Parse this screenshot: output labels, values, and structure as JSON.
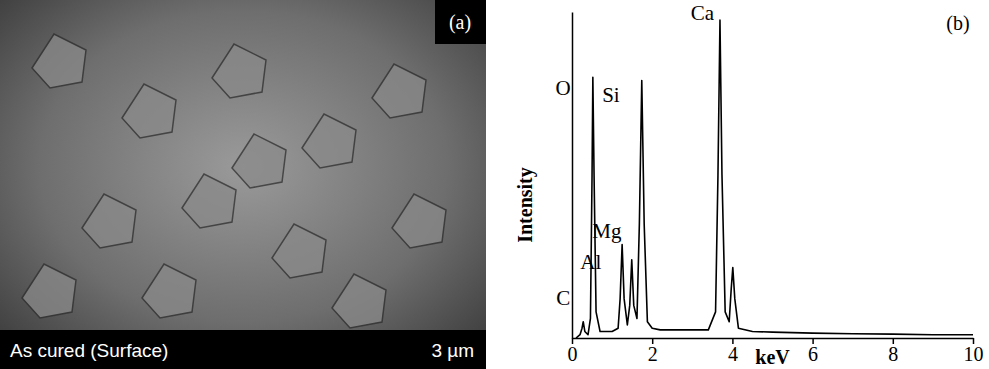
{
  "image_panel": {
    "label": "(a)",
    "caption": "As cured (Surface)",
    "scale_bar": "3 µm"
  },
  "chart_data": {
    "type": "line",
    "title": "(b)",
    "x_label": "keV",
    "y_label": "Intensity",
    "x": [
      0.1,
      0.2,
      0.25,
      0.28,
      0.32,
      0.4,
      0.46,
      0.5,
      0.52,
      0.55,
      0.6,
      0.7,
      0.8,
      1.0,
      1.15,
      1.2,
      1.25,
      1.3,
      1.38,
      1.44,
      1.49,
      1.54,
      1.62,
      1.68,
      1.74,
      1.8,
      1.88,
      2.0,
      2.2,
      2.5,
      3.0,
      3.4,
      3.58,
      3.64,
      3.69,
      3.74,
      3.82,
      3.92,
      3.97,
      4.01,
      4.06,
      4.15,
      4.5,
      5.0,
      6.0,
      7.0,
      8.0,
      9.0,
      10.0
    ],
    "values": [
      0,
      1,
      3,
      5,
      2,
      1,
      6,
      50,
      80,
      50,
      8,
      2,
      2,
      2,
      3,
      12,
      28.7,
      12,
      4,
      10,
      24,
      10,
      6,
      35,
      79,
      35,
      5,
      3,
      2.5,
      2.5,
      2.5,
      2.5,
      8,
      50,
      97.5,
      50,
      8,
      5,
      15,
      21.6,
      12,
      3,
      2,
      1.8,
      1.5,
      1.3,
      1.2,
      1,
      1
    ],
    "color": "#000000",
    "xlim": [
      0,
      10
    ],
    "xticks": [
      0,
      2,
      4,
      6,
      8,
      10
    ],
    "ylim": [
      0,
      100
    ],
    "yticks": [],
    "tick_labels": "x",
    "grid": false,
    "annotations": [
      {
        "text": "C",
        "x": -0.22,
        "y": 11.7
      },
      {
        "text": "O",
        "x": -0.22,
        "y": 76
      },
      {
        "text": "Mg",
        "x": 0.87,
        "y": 32
      },
      {
        "text": "Al",
        "x": 0.47,
        "y": 22.5
      },
      {
        "text": "Si",
        "x": 0.97,
        "y": 74
      },
      {
        "text": "Ca",
        "x": 3.25,
        "y": 99
      }
    ]
  }
}
